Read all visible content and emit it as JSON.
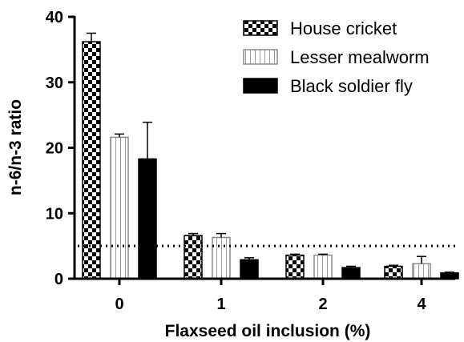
{
  "chart_data": {
    "type": "bar",
    "title": "",
    "xlabel": "Flaxseed oil inclusion (%)",
    "ylabel": "n-6/n-3 ratio",
    "categories": [
      "0",
      "1",
      "2",
      "4"
    ],
    "ylim": [
      0,
      40
    ],
    "yticks": [
      0,
      10,
      20,
      30,
      40
    ],
    "grid": false,
    "legend_position": "top-right",
    "reference_line": {
      "y": 5,
      "style": "dotted"
    },
    "series": [
      {
        "name": "House cricket",
        "pattern": "checkerboard",
        "values": [
          36.2,
          6.6,
          3.6,
          1.9
        ],
        "errors": [
          1.3,
          0.3,
          0.15,
          0.15
        ]
      },
      {
        "name": "Lesser mealworm",
        "pattern": "vertical-stripes",
        "values": [
          21.6,
          6.3,
          3.6,
          2.3
        ],
        "errors": [
          0.5,
          0.6,
          0.15,
          1.1
        ]
      },
      {
        "name": "Black soldier fly",
        "pattern": "solid-black",
        "values": [
          18.3,
          2.9,
          1.7,
          0.9
        ],
        "errors": [
          5.6,
          0.3,
          0.2,
          0.1
        ]
      }
    ]
  }
}
